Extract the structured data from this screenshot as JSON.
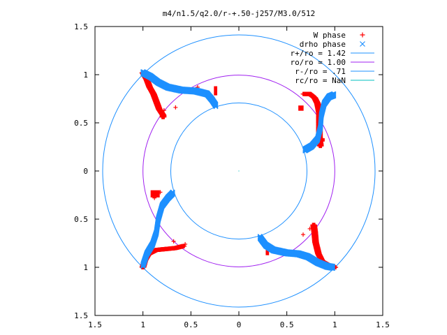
{
  "chart_data": {
    "type": "scatter",
    "title": "m4/n1.5/q2.0/r-+.50-j257/M3.0/512",
    "xlim": [
      -1.5,
      1.5
    ],
    "ylim": [
      -1.5,
      1.5
    ],
    "x_ticks": [
      -1.5,
      -1,
      -0.5,
      0,
      0.5,
      1,
      1.5
    ],
    "x_tick_labels": [
      "1.5",
      "1",
      "0.5",
      "0",
      "0.5",
      "1",
      "1.5"
    ],
    "y_ticks": [
      1.5,
      1,
      0.5,
      0,
      -0.5,
      -1,
      -1.5
    ],
    "y_tick_labels": [
      "1.5",
      "1",
      "0.5",
      "0",
      "0.5",
      "1",
      "1.5"
    ],
    "grid": false,
    "legend_position": "top-right",
    "series": [
      {
        "name": "W phase",
        "marker": "+",
        "color": "#ff0000",
        "arms": [
          [
            [
              -1.0,
              1.02
            ],
            [
              -0.96,
              0.95
            ],
            [
              -0.93,
              0.87
            ],
            [
              -0.89,
              0.8
            ],
            [
              -0.86,
              0.72
            ],
            [
              -0.83,
              0.64
            ],
            [
              -0.79,
              0.58
            ],
            [
              -0.79,
              0.56
            ]
          ],
          [
            [
              0.68,
              0.8
            ],
            [
              0.74,
              0.8
            ],
            [
              0.79,
              0.76
            ],
            [
              0.82,
              0.7
            ],
            [
              0.84,
              0.6
            ],
            [
              0.84,
              0.48
            ],
            [
              0.84,
              0.36
            ],
            [
              0.85,
              0.26
            ]
          ],
          [
            [
              1.0,
              -1.0
            ],
            [
              0.94,
              -0.98
            ],
            [
              0.87,
              -0.94
            ],
            [
              0.83,
              -0.86
            ],
            [
              0.8,
              -0.74
            ],
            [
              0.79,
              -0.63
            ],
            [
              0.78,
              -0.56
            ]
          ],
          [
            [
              -1.0,
              -1.0
            ],
            [
              -0.98,
              -0.93
            ],
            [
              -0.94,
              -0.86
            ],
            [
              -0.86,
              -0.82
            ],
            [
              -0.76,
              -0.81
            ],
            [
              -0.66,
              -0.8
            ],
            [
              -0.58,
              -0.78
            ]
          ]
        ],
        "stray": [
          [
            -0.78,
            0.63
          ],
          [
            -0.66,
            0.66
          ],
          [
            -0.42,
            0.84
          ],
          [
            -0.43,
            0.87
          ],
          [
            0.86,
            0.28
          ],
          [
            0.67,
            -0.66
          ],
          [
            0.74,
            -0.6
          ],
          [
            -0.88,
            -0.28
          ],
          [
            -0.82,
            -0.22
          ],
          [
            -0.72,
            -0.26
          ],
          [
            -0.56,
            -0.76
          ],
          [
            -0.68,
            -0.73
          ]
        ],
        "patches": [
          [
            [
              -0.26,
              0.88
            ],
            [
              -0.24,
              0.8
            ]
          ],
          [
            [
              0.62,
              0.68
            ],
            [
              0.66,
              0.64
            ]
          ],
          [
            [
              0.84,
              0.34
            ],
            [
              0.88,
              0.32
            ]
          ],
          [
            [
              0.28,
              -0.82
            ],
            [
              0.3,
              -0.86
            ]
          ],
          [
            [
              -0.92,
              -0.2
            ],
            [
              -0.84,
              -0.26
            ]
          ]
        ]
      },
      {
        "name": "drho phase",
        "marker": "x",
        "color": "#1e90ff",
        "arms": [
          [
            [
              -1.0,
              1.02
            ],
            [
              -0.92,
              0.98
            ],
            [
              -0.84,
              0.92
            ],
            [
              -0.74,
              0.87
            ],
            [
              -0.6,
              0.84
            ],
            [
              -0.45,
              0.83
            ],
            [
              -0.33,
              0.8
            ],
            [
              -0.28,
              0.74
            ],
            [
              -0.24,
              0.68
            ]
          ],
          [
            [
              0.69,
              0.22
            ],
            [
              0.76,
              0.26
            ],
            [
              0.82,
              0.33
            ],
            [
              0.85,
              0.45
            ],
            [
              0.86,
              0.58
            ],
            [
              0.89,
              0.7
            ],
            [
              0.94,
              0.77
            ],
            [
              0.99,
              0.79
            ]
          ],
          [
            [
              0.22,
              -0.69
            ],
            [
              0.28,
              -0.77
            ],
            [
              0.36,
              -0.82
            ],
            [
              0.5,
              -0.85
            ],
            [
              0.62,
              -0.86
            ],
            [
              0.72,
              -0.89
            ],
            [
              0.82,
              -0.95
            ],
            [
              0.92,
              -0.99
            ],
            [
              0.98,
              -1.0
            ]
          ],
          [
            [
              -0.69,
              -0.23
            ],
            [
              -0.74,
              -0.28
            ],
            [
              -0.8,
              -0.36
            ],
            [
              -0.84,
              -0.5
            ],
            [
              -0.86,
              -0.64
            ],
            [
              -0.9,
              -0.76
            ],
            [
              -0.96,
              -0.86
            ],
            [
              -1.0,
              -0.98
            ]
          ]
        ]
      },
      {
        "name": "r+/ro = 1.42",
        "type": "circle",
        "radius": 1.42,
        "color": "#1e90ff"
      },
      {
        "name": "ro/ro = 1.00",
        "type": "circle",
        "radius": 1.0,
        "color": "#a020f0"
      },
      {
        "name": "r-/ro = .71",
        "type": "circle",
        "radius": 0.71,
        "color": "#1e90ff"
      },
      {
        "name": "rc/ro = NaN",
        "type": "circle",
        "radius": null,
        "color": "#00bfbf"
      }
    ]
  }
}
